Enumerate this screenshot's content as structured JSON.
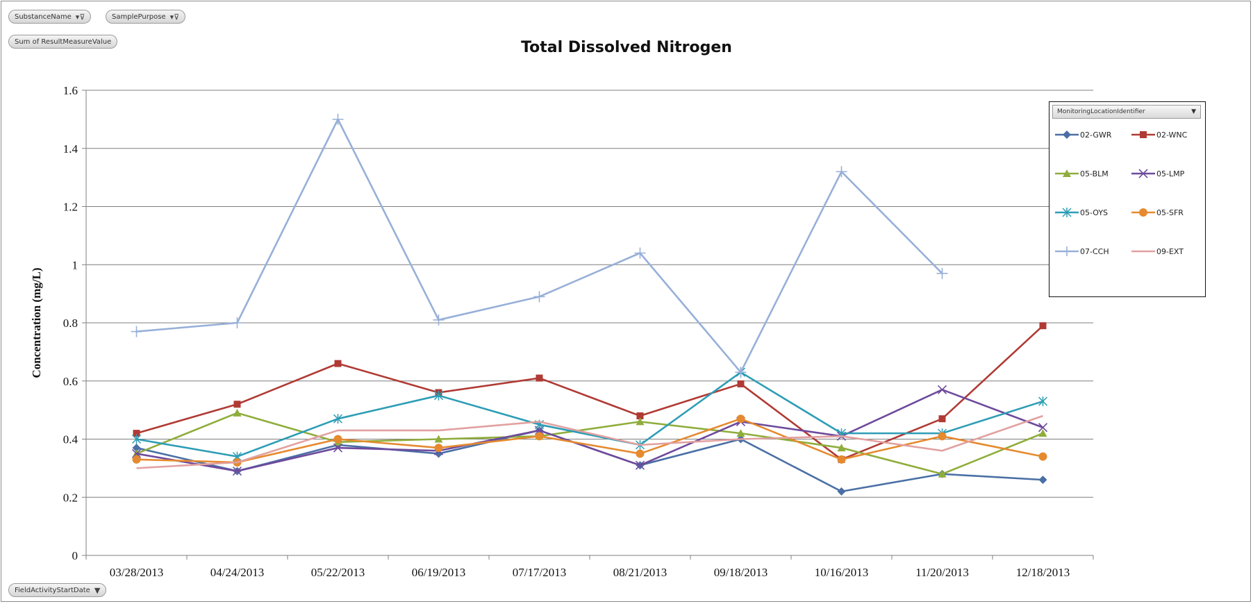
{
  "filters": {
    "substance_label": "SubstanceName",
    "purpose_label": "SamplePurpose",
    "value_label": "Sum of ResultMeasureValue",
    "axis_field_label": "FieldActivityStartDate"
  },
  "legend": {
    "header": "MonitoringLocationIdentifier"
  },
  "chart_data": {
    "type": "line",
    "title": "Total Dissolved Nitrogen",
    "xlabel": "",
    "ylabel": "Concentration (mg/L)",
    "ylim": [
      0,
      1.6
    ],
    "yticks": [
      0,
      0.2,
      0.4,
      0.6,
      0.8,
      1,
      1.2,
      1.4,
      1.6
    ],
    "ytick_labels": [
      "0",
      "0.2",
      "0.4",
      "0.6",
      "0.8",
      "1",
      "1.2",
      "1.4",
      "1.6"
    ],
    "grid": true,
    "legend_position": "right",
    "categories": [
      "03/28/2013",
      "04/24/2013",
      "05/22/2013",
      "06/19/2013",
      "07/17/2013",
      "08/21/2013",
      "09/18/2013",
      "10/16/2013",
      "11/20/2013",
      "12/18/2013"
    ],
    "series": [
      {
        "name": "02-GWR",
        "color": "#4a6fa5",
        "marker": "diamond",
        "values": [
          0.37,
          0.29,
          0.38,
          0.35,
          0.43,
          0.31,
          0.4,
          0.22,
          0.28,
          0.26
        ]
      },
      {
        "name": "02-WNC",
        "color": "#b03a34",
        "marker": "square",
        "values": [
          0.42,
          0.52,
          0.66,
          0.56,
          0.61,
          0.48,
          0.59,
          0.33,
          0.47,
          0.79
        ]
      },
      {
        "name": "05-BLM",
        "color": "#8fad3c",
        "marker": "triangle",
        "values": [
          0.35,
          0.49,
          0.39,
          0.4,
          0.41,
          0.46,
          0.42,
          0.37,
          0.28,
          0.42
        ]
      },
      {
        "name": "05-LMP",
        "color": "#6e4a9c",
        "marker": "x",
        "values": [
          0.35,
          0.29,
          0.37,
          0.36,
          0.43,
          0.31,
          0.46,
          0.41,
          0.57,
          0.44
        ]
      },
      {
        "name": "05-OYS",
        "color": "#2d9db5",
        "marker": "asterisk",
        "values": [
          0.4,
          0.34,
          0.47,
          0.55,
          0.45,
          0.38,
          0.63,
          0.42,
          0.42,
          0.53
        ]
      },
      {
        "name": "05-SFR",
        "color": "#e58a2f",
        "marker": "circle",
        "values": [
          0.33,
          0.32,
          0.4,
          0.37,
          0.41,
          0.35,
          0.47,
          0.33,
          0.41,
          0.34
        ]
      },
      {
        "name": "07-CCH",
        "color": "#97b0d8",
        "marker": "plus",
        "values": [
          0.77,
          0.8,
          1.5,
          0.81,
          0.89,
          1.04,
          0.63,
          1.32,
          0.97,
          null
        ]
      },
      {
        "name": "09-EXT",
        "color": "#e2a0a0",
        "marker": "none",
        "values": [
          0.3,
          0.32,
          0.43,
          0.43,
          0.46,
          0.38,
          0.4,
          0.41,
          0.36,
          0.48
        ]
      }
    ]
  }
}
